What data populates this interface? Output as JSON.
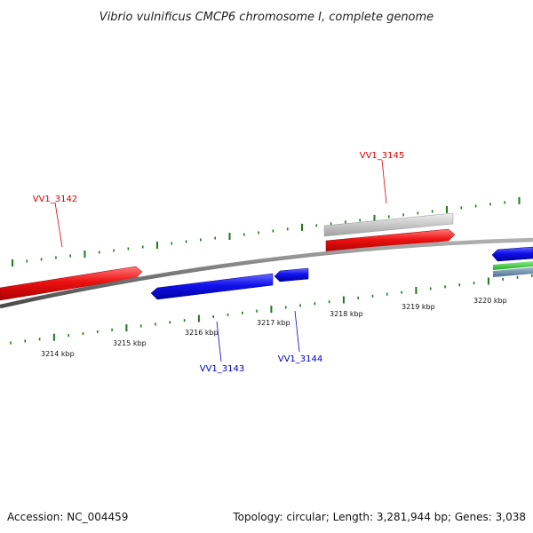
{
  "title": "Vibrio vulnificus CMCP6 chromosome I, complete genome",
  "footer": {
    "accession": "Accession: NC_004459",
    "summary": "Topology: circular; Length: 3,281,944 bp; Genes: 3,038"
  },
  "scale": {
    "unit": "kbp",
    "tick_labels": [
      "3214 kbp",
      "3215 kbp",
      "3216 kbp",
      "3217 kbp",
      "3218 kbp",
      "3219 kbp",
      "3220 kbp"
    ]
  },
  "genes": [
    {
      "id": "VV1_3142",
      "strand": "forward",
      "color": "#dd0000"
    },
    {
      "id": "VV1_3143",
      "strand": "reverse",
      "color": "#0000cc"
    },
    {
      "id": "VV1_3144",
      "strand": "reverse",
      "color": "#0000cc"
    },
    {
      "id": "VV1_3145",
      "strand": "forward",
      "color": "#dd0000"
    }
  ],
  "colors": {
    "backbone": "#7a7a7a",
    "tick": "#1a7a1a",
    "forward_gene": "#dd0000",
    "reverse_gene": "#0000cc",
    "pseudo_track": "#bdbdbd",
    "extra_track_green": "#33bb33",
    "extra_track_slate": "#5f7f9f"
  }
}
